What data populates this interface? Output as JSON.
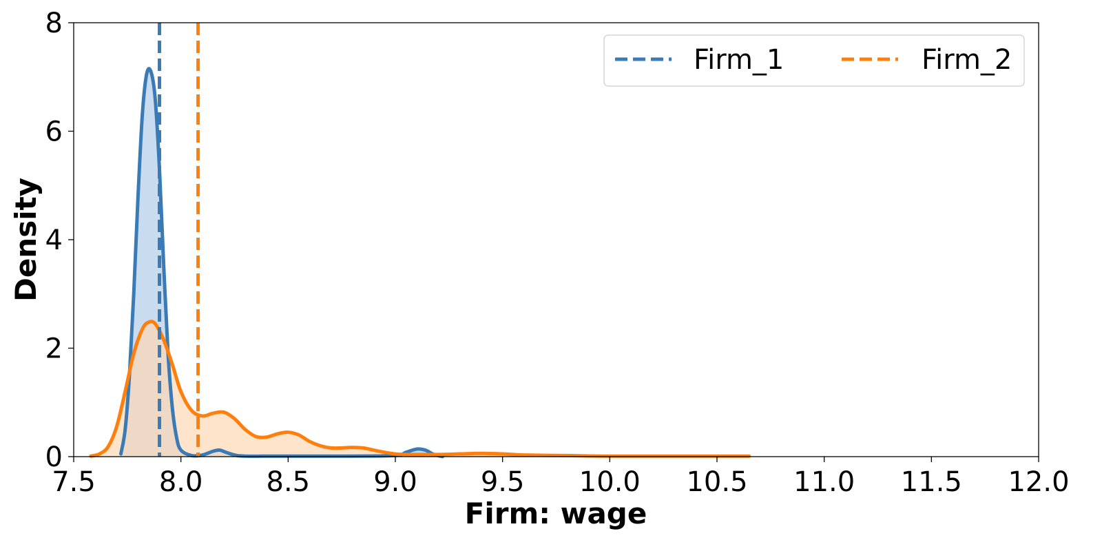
{
  "chart_data": {
    "type": "area",
    "xlabel": "Firm: wage",
    "ylabel": "Density",
    "xlim": [
      7.5,
      12.0
    ],
    "ylim": [
      0,
      8
    ],
    "x_ticks": [
      "7.5",
      "8.0",
      "8.5",
      "9.0",
      "9.5",
      "10.0",
      "10.5",
      "11.0",
      "11.5",
      "12.0"
    ],
    "y_ticks": [
      "0",
      "2",
      "4",
      "6",
      "8"
    ],
    "grid": false,
    "legend_position": "top-right",
    "legend_columns": 2,
    "series": [
      {
        "name": "Firm_1",
        "color": "#3a7ab5",
        "fill": "#c6d9ee",
        "mean_line": 7.9,
        "x": [
          7.72,
          7.74,
          7.76,
          7.78,
          7.8,
          7.82,
          7.84,
          7.86,
          7.88,
          7.9,
          7.92,
          7.94,
          7.96,
          7.98,
          8.0,
          8.05,
          8.1,
          8.15,
          8.18,
          8.21,
          8.25,
          8.3,
          8.5,
          8.8,
          9.0,
          9.05,
          9.1,
          9.14,
          9.18,
          9.22
        ],
        "y": [
          0.05,
          0.5,
          1.5,
          3.0,
          4.8,
          6.3,
          7.05,
          7.1,
          6.6,
          5.3,
          3.5,
          1.9,
          0.9,
          0.35,
          0.12,
          0.02,
          0.03,
          0.1,
          0.12,
          0.08,
          0.03,
          0.01,
          0.01,
          0.01,
          0.02,
          0.08,
          0.14,
          0.12,
          0.04,
          0.0
        ]
      },
      {
        "name": "Firm_2",
        "color": "#ff7f0e",
        "fill": "#fdd9b5",
        "mean_line": 8.08,
        "x": [
          7.58,
          7.62,
          7.66,
          7.7,
          7.74,
          7.78,
          7.82,
          7.85,
          7.88,
          7.92,
          7.96,
          8.0,
          8.05,
          8.1,
          8.15,
          8.2,
          8.25,
          8.3,
          8.35,
          8.4,
          8.45,
          8.5,
          8.55,
          8.6,
          8.65,
          8.7,
          8.75,
          8.8,
          8.85,
          8.9,
          8.95,
          9.0,
          9.05,
          9.1,
          9.2,
          9.3,
          9.4,
          9.5,
          9.6,
          9.8,
          10.0,
          10.3,
          10.65
        ],
        "y": [
          0.01,
          0.05,
          0.18,
          0.55,
          1.2,
          1.9,
          2.35,
          2.48,
          2.45,
          2.15,
          1.7,
          1.2,
          0.85,
          0.75,
          0.8,
          0.82,
          0.7,
          0.5,
          0.37,
          0.36,
          0.42,
          0.45,
          0.4,
          0.28,
          0.2,
          0.16,
          0.16,
          0.17,
          0.16,
          0.12,
          0.08,
          0.05,
          0.04,
          0.04,
          0.04,
          0.05,
          0.06,
          0.05,
          0.03,
          0.02,
          0.01,
          0.01,
          0.01
        ]
      }
    ]
  }
}
